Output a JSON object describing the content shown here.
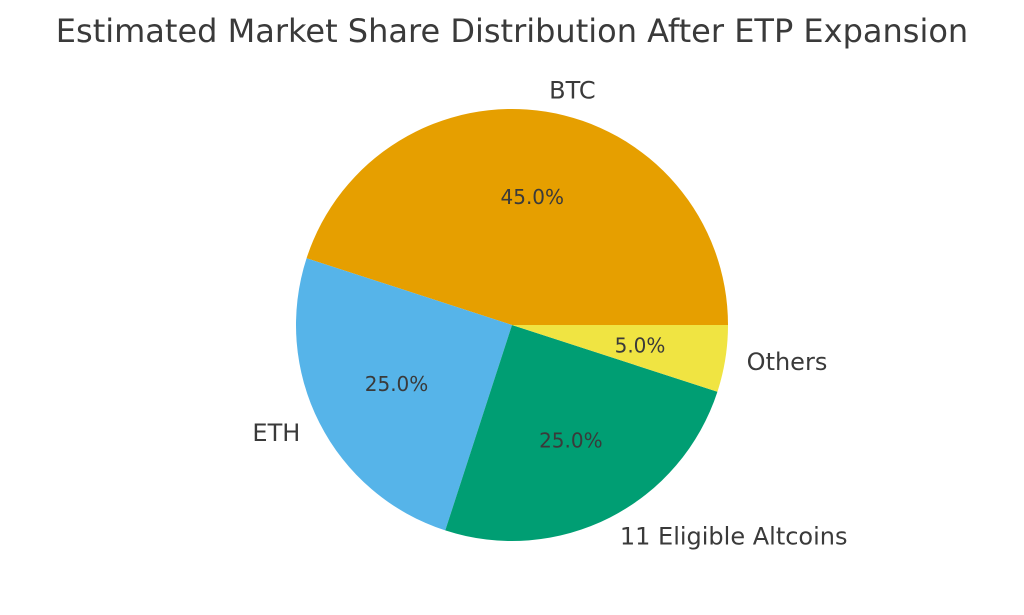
{
  "chart_data": {
    "type": "pie",
    "title": "Estimated Market Share Distribution After ETP Expansion",
    "start_angle_deg": 0,
    "direction": "counterclockwise",
    "slices": [
      {
        "label": "BTC",
        "value": 45.0,
        "pct_text": "45.0%",
        "color": "#E69F00"
      },
      {
        "label": "ETH",
        "value": 25.0,
        "pct_text": "25.0%",
        "color": "#56B4E9"
      },
      {
        "label": "11 Eligible Altcoins",
        "value": 25.0,
        "pct_text": "25.0%",
        "color": "#009E73"
      },
      {
        "label": "Others",
        "value": 5.0,
        "pct_text": "5.0%",
        "color": "#F0E442"
      }
    ]
  }
}
